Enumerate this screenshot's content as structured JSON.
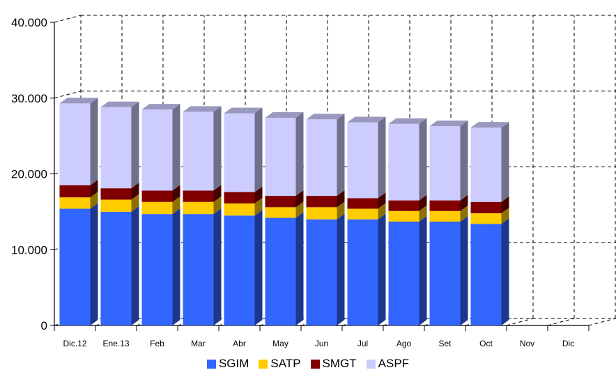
{
  "chart_data": {
    "type": "bar",
    "stacked": true,
    "three_d": true,
    "categories": [
      "Dic.12",
      "Ene.13",
      "Feb",
      "Mar",
      "Abr",
      "May",
      "Jun",
      "Jul",
      "Ago",
      "Set",
      "Oct",
      "Nov",
      "Dic"
    ],
    "ylim": [
      0,
      40000
    ],
    "yticks": [
      "0",
      "10.000",
      "20.000",
      "30.000",
      "40.000"
    ],
    "grid": true,
    "legend_position": "bottom",
    "series": [
      {
        "name": "SGIM",
        "color": "#3366FF",
        "values": [
          15400,
          15000,
          14700,
          14700,
          14500,
          14200,
          14000,
          14000,
          13700,
          13700,
          13400,
          null,
          null
        ]
      },
      {
        "name": "SATP",
        "color": "#FFCC00",
        "values": [
          1500,
          1600,
          1600,
          1600,
          1600,
          1400,
          1600,
          1400,
          1400,
          1400,
          1400,
          null,
          null
        ]
      },
      {
        "name": "SMGT",
        "color": "#800000",
        "values": [
          1600,
          1500,
          1500,
          1500,
          1500,
          1500,
          1500,
          1400,
          1400,
          1400,
          1500,
          null,
          null
        ]
      },
      {
        "name": "ASPF",
        "color": "#CCCCFF",
        "values": [
          10800,
          10700,
          10700,
          10400,
          10400,
          10300,
          10100,
          10000,
          10100,
          9800,
          9800,
          null,
          null
        ]
      }
    ]
  }
}
